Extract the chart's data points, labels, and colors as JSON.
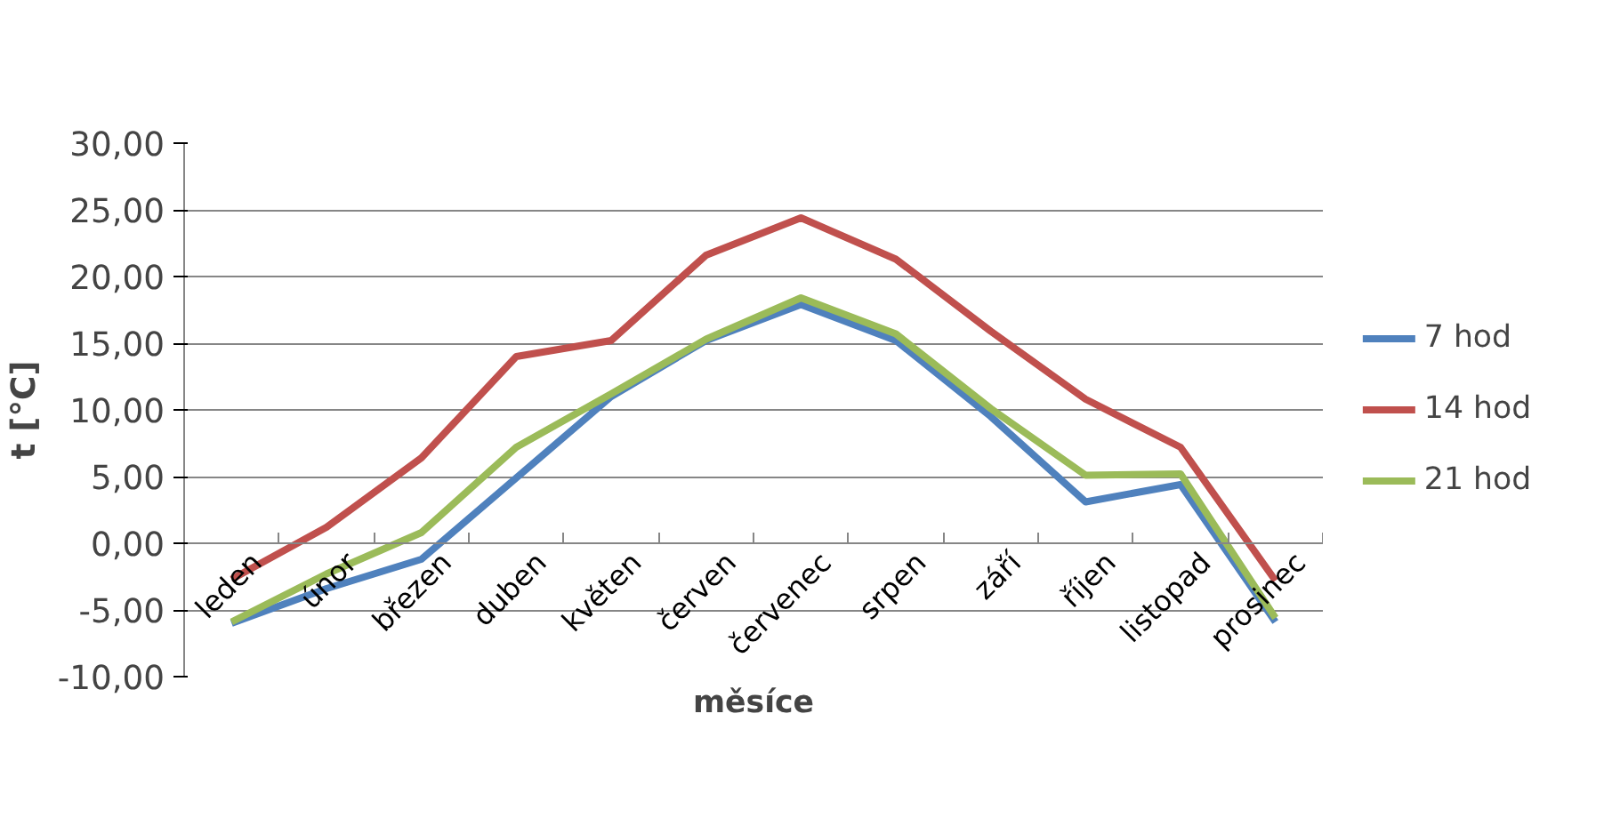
{
  "chart_data": {
    "type": "line",
    "xlabel": "měsíce",
    "ylabel": "t [°C]",
    "categories": [
      "leden",
      "únor",
      "březen",
      "duben",
      "květen",
      "červen",
      "červenec",
      "srpen",
      "září",
      "říjen",
      "listopad",
      "prosinec"
    ],
    "series": [
      {
        "name": "7 hod",
        "color": "#4f81bd",
        "values": [
          -6.0,
          -3.4,
          -1.2,
          4.9,
          11.0,
          15.2,
          17.9,
          15.2,
          9.5,
          3.1,
          4.4,
          -5.9
        ]
      },
      {
        "name": "14 hod",
        "color": "#c0504d",
        "values": [
          -2.7,
          1.2,
          6.4,
          14.0,
          15.2,
          21.6,
          24.4,
          21.3,
          15.9,
          10.8,
          7.2,
          -2.8
        ]
      },
      {
        "name": "21 hod",
        "color": "#9bbb59",
        "values": [
          -5.9,
          -2.3,
          0.8,
          7.2,
          11.2,
          15.3,
          18.4,
          15.7,
          10.1,
          5.1,
          5.2,
          -5.6
        ]
      }
    ],
    "ylim": [
      -10,
      30
    ],
    "yticks": [
      {
        "value": -10,
        "label": "-10,00"
      },
      {
        "value": -5,
        "label": "-5,00"
      },
      {
        "value": 0,
        "label": "0,00"
      },
      {
        "value": 5,
        "label": "5,00"
      },
      {
        "value": 10,
        "label": "10,00"
      },
      {
        "value": 15,
        "label": "15,00"
      },
      {
        "value": 20,
        "label": "20,00"
      },
      {
        "value": 25,
        "label": "25,00"
      },
      {
        "value": 30,
        "label": "30,00"
      }
    ],
    "grid": "y",
    "legend": "right",
    "line_style": "solid"
  }
}
